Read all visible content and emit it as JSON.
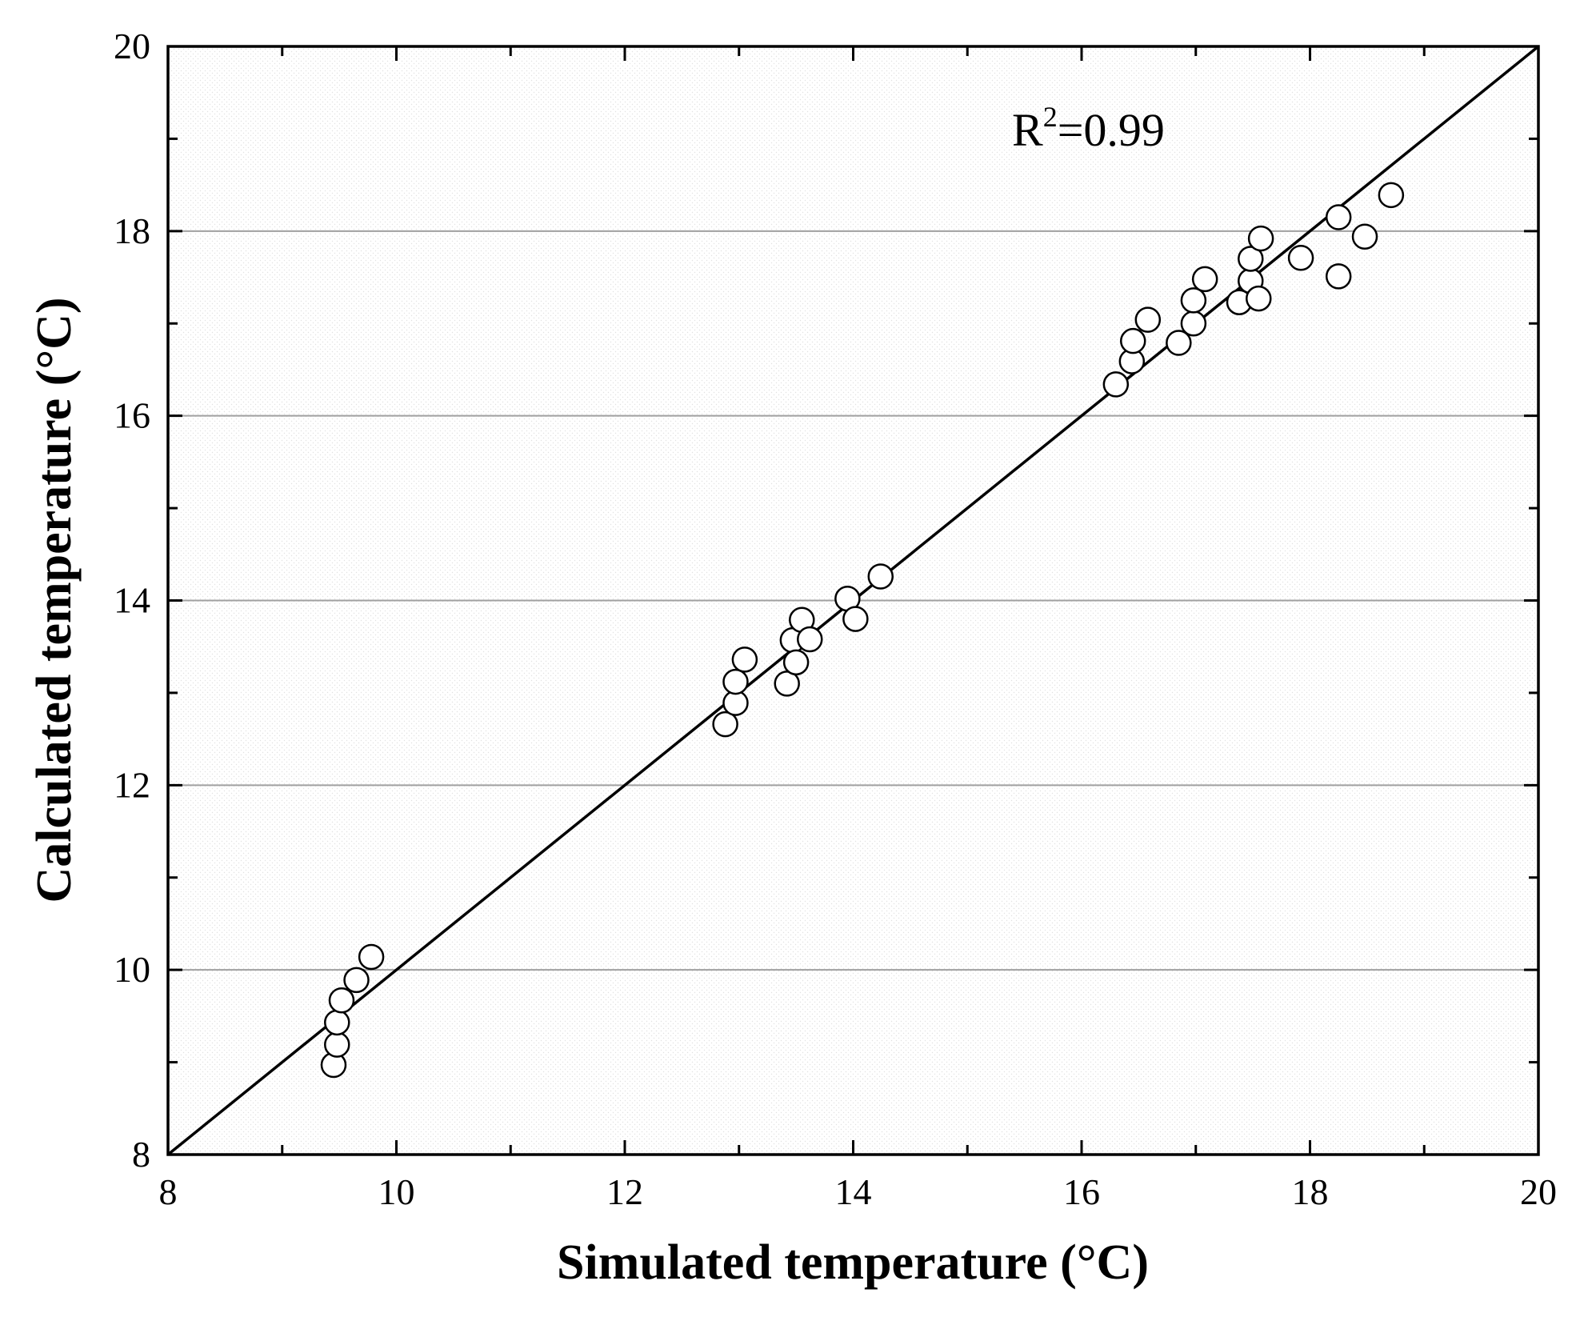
{
  "chart_data": {
    "type": "scatter",
    "title": "",
    "xlabel": "Simulated temperature (°C)",
    "ylabel": "Calculated temperature (°C)",
    "xlim": [
      8,
      20
    ],
    "ylim": [
      8,
      20
    ],
    "xticks": [
      8,
      10,
      12,
      14,
      16,
      18,
      20
    ],
    "yticks": [
      8,
      10,
      12,
      14,
      16,
      18,
      20
    ],
    "x_minor_step": 1,
    "y_minor_step": 1,
    "horizontal_grid_at": [
      10,
      12,
      14,
      16,
      18
    ],
    "reference_line": {
      "label": "1:1",
      "x": [
        8,
        20
      ],
      "y": [
        8,
        20
      ]
    },
    "annotation": {
      "base": "R",
      "superscript": "2",
      "suffix": "=0.99"
    },
    "series": [
      {
        "name": "data",
        "marker": "open-circle",
        "x": [
          9.45,
          9.48,
          9.48,
          9.52,
          9.65,
          9.78,
          12.88,
          12.97,
          12.97,
          13.05,
          13.42,
          13.47,
          13.5,
          13.55,
          13.62,
          13.95,
          14.02,
          14.24,
          16.3,
          16.44,
          16.45,
          16.58,
          16.85,
          16.98,
          16.98,
          17.08,
          17.38,
          17.48,
          17.48,
          17.55,
          17.57,
          17.92,
          18.25,
          18.25,
          18.48,
          18.71
        ],
        "y": [
          8.97,
          9.19,
          9.43,
          9.67,
          9.89,
          10.14,
          12.66,
          12.89,
          13.12,
          13.36,
          13.1,
          13.57,
          13.33,
          13.79,
          13.58,
          14.02,
          13.8,
          14.26,
          16.34,
          16.59,
          16.81,
          17.04,
          16.79,
          17.0,
          17.25,
          17.48,
          17.23,
          17.46,
          17.7,
          17.27,
          17.92,
          17.71,
          18.15,
          17.51,
          17.94,
          18.39
        ]
      }
    ]
  }
}
